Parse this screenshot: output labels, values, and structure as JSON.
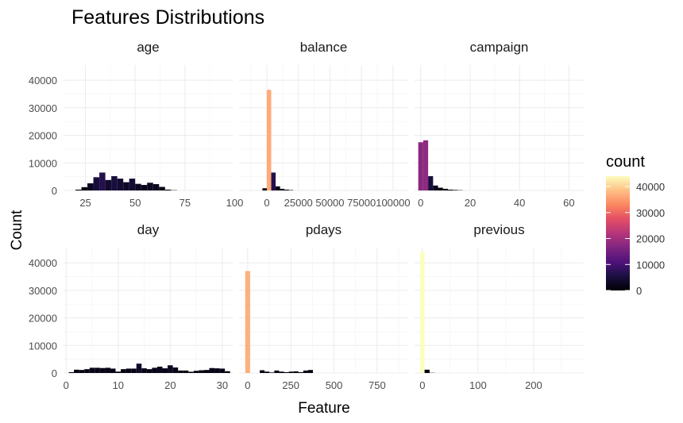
{
  "chart_data": {
    "type": "bar",
    "title": "Features Distributions",
    "xlabel": "Feature",
    "ylabel": "Count",
    "legend": {
      "title": "count",
      "ticks": [
        0,
        10000,
        20000,
        30000,
        40000
      ],
      "tick_labels": [
        "0",
        "10000",
        "20000",
        "30000",
        "40000"
      ],
      "placement": "right",
      "range": [
        0,
        44000
      ],
      "palette": "magma"
    },
    "y_ticks": [
      0,
      10000,
      20000,
      30000,
      40000
    ],
    "y_tick_labels": [
      "0",
      "10000",
      "20000",
      "30000",
      "40000"
    ],
    "ylim": [
      0,
      45500
    ],
    "grid": true,
    "panels": [
      {
        "name": "age",
        "xlim": [
          14,
          99
        ],
        "x_ticks": [
          25,
          50,
          75,
          100
        ],
        "x_tick_labels": [
          "25",
          "50",
          "75",
          "100"
        ],
        "bins": [
          {
            "x0": 20,
            "x1": 23,
            "count": 300
          },
          {
            "x0": 23,
            "x1": 26,
            "count": 1200
          },
          {
            "x0": 26,
            "x1": 29,
            "count": 2600
          },
          {
            "x0": 29,
            "x1": 32,
            "count": 4800
          },
          {
            "x0": 32,
            "x1": 35,
            "count": 6500
          },
          {
            "x0": 35,
            "x1": 38,
            "count": 3800
          },
          {
            "x0": 38,
            "x1": 41,
            "count": 5200
          },
          {
            "x0": 41,
            "x1": 44,
            "count": 4300
          },
          {
            "x0": 44,
            "x1": 47,
            "count": 3000
          },
          {
            "x0": 47,
            "x1": 50,
            "count": 4300
          },
          {
            "x0": 50,
            "x1": 53,
            "count": 2400
          },
          {
            "x0": 53,
            "x1": 56,
            "count": 2000
          },
          {
            "x0": 56,
            "x1": 59,
            "count": 2800
          },
          {
            "x0": 59,
            "x1": 62,
            "count": 2300
          },
          {
            "x0": 62,
            "x1": 65,
            "count": 1300
          },
          {
            "x0": 65,
            "x1": 68,
            "count": 300
          },
          {
            "x0": 68,
            "x1": 71,
            "count": 100
          }
        ]
      },
      {
        "name": "balance",
        "xlim": [
          -22000,
          112000
        ],
        "x_ticks": [
          0,
          25000,
          50000,
          75000,
          100000
        ],
        "x_tick_labels": [
          "0",
          "25000",
          "50000",
          "75000",
          "100000"
        ],
        "bins": [
          {
            "x0": -3500,
            "x1": 0,
            "count": 800
          },
          {
            "x0": 0,
            "x1": 3500,
            "count": 36500
          },
          {
            "x0": 3500,
            "x1": 7000,
            "count": 6500
          },
          {
            "x0": 7000,
            "x1": 10500,
            "count": 1500
          },
          {
            "x0": 10500,
            "x1": 14000,
            "count": 600
          },
          {
            "x0": 14000,
            "x1": 17500,
            "count": 300
          },
          {
            "x0": 17500,
            "x1": 21000,
            "count": 150
          }
        ]
      },
      {
        "name": "campaign",
        "xlim": [
          -2.5,
          66
        ],
        "x_ticks": [
          0,
          20,
          40,
          60
        ],
        "x_tick_labels": [
          "0",
          "20",
          "40",
          "60"
        ],
        "bins": [
          {
            "x0": -1,
            "x1": 1,
            "count": 17500
          },
          {
            "x0": 1,
            "x1": 3,
            "count": 18200
          },
          {
            "x0": 3,
            "x1": 5,
            "count": 5200
          },
          {
            "x0": 5,
            "x1": 7,
            "count": 1800
          },
          {
            "x0": 7,
            "x1": 9,
            "count": 1000
          },
          {
            "x0": 9,
            "x1": 11,
            "count": 600
          },
          {
            "x0": 11,
            "x1": 13,
            "count": 300
          },
          {
            "x0": 13,
            "x1": 15,
            "count": 200
          },
          {
            "x0": 15,
            "x1": 17,
            "count": 100
          }
        ]
      },
      {
        "name": "day",
        "xlim": [
          -0.5,
          32
        ],
        "x_ticks": [
          0,
          10,
          20,
          30
        ],
        "x_tick_labels": [
          "0",
          "10",
          "20",
          "30"
        ],
        "bins": [
          {
            "x0": 0.5,
            "x1": 1.5,
            "count": 300
          },
          {
            "x0": 1.5,
            "x1": 2.5,
            "count": 1200
          },
          {
            "x0": 2.5,
            "x1": 3.5,
            "count": 1100
          },
          {
            "x0": 3.5,
            "x1": 4.5,
            "count": 1400
          },
          {
            "x0": 4.5,
            "x1": 5.5,
            "count": 1900
          },
          {
            "x0": 5.5,
            "x1": 6.5,
            "count": 1900
          },
          {
            "x0": 6.5,
            "x1": 7.5,
            "count": 1800
          },
          {
            "x0": 7.5,
            "x1": 8.5,
            "count": 1900
          },
          {
            "x0": 8.5,
            "x1": 9.5,
            "count": 1600
          },
          {
            "x0": 9.5,
            "x1": 10.5,
            "count": 500
          },
          {
            "x0": 10.5,
            "x1": 11.5,
            "count": 1400
          },
          {
            "x0": 11.5,
            "x1": 12.5,
            "count": 1600
          },
          {
            "x0": 12.5,
            "x1": 13.5,
            "count": 1600
          },
          {
            "x0": 13.5,
            "x1": 14.5,
            "count": 3400
          },
          {
            "x0": 14.5,
            "x1": 15.5,
            "count": 1700
          },
          {
            "x0": 15.5,
            "x1": 16.5,
            "count": 1400
          },
          {
            "x0": 16.5,
            "x1": 17.5,
            "count": 1900
          },
          {
            "x0": 17.5,
            "x1": 18.5,
            "count": 2300
          },
          {
            "x0": 18.5,
            "x1": 19.5,
            "count": 1700
          },
          {
            "x0": 19.5,
            "x1": 20.5,
            "count": 2800
          },
          {
            "x0": 20.5,
            "x1": 21.5,
            "count": 2000
          },
          {
            "x0": 21.5,
            "x1": 22.5,
            "count": 900
          },
          {
            "x0": 22.5,
            "x1": 23.5,
            "count": 900
          },
          {
            "x0": 23.5,
            "x1": 24.5,
            "count": 450
          },
          {
            "x0": 24.5,
            "x1": 25.5,
            "count": 800
          },
          {
            "x0": 25.5,
            "x1": 26.5,
            "count": 1000
          },
          {
            "x0": 26.5,
            "x1": 27.5,
            "count": 1100
          },
          {
            "x0": 27.5,
            "x1": 28.5,
            "count": 1800
          },
          {
            "x0": 28.5,
            "x1": 29.5,
            "count": 1700
          },
          {
            "x0": 29.5,
            "x1": 30.5,
            "count": 1600
          },
          {
            "x0": 30.5,
            "x1": 31.5,
            "count": 650
          }
        ]
      },
      {
        "name": "pdays",
        "xlim": [
          -50,
          930
        ],
        "x_ticks": [
          0,
          250,
          500,
          750
        ],
        "x_tick_labels": [
          "0",
          "250",
          "500",
          "750"
        ],
        "bins": [
          {
            "x0": -14,
            "x1": 14,
            "count": 37000
          },
          {
            "x0": 70,
            "x1": 98,
            "count": 1000
          },
          {
            "x0": 98,
            "x1": 126,
            "count": 500
          },
          {
            "x0": 126,
            "x1": 154,
            "count": 200
          },
          {
            "x0": 154,
            "x1": 182,
            "count": 900
          },
          {
            "x0": 182,
            "x1": 210,
            "count": 500
          },
          {
            "x0": 210,
            "x1": 238,
            "count": 300
          },
          {
            "x0": 238,
            "x1": 266,
            "count": 500
          },
          {
            "x0": 266,
            "x1": 294,
            "count": 600
          },
          {
            "x0": 294,
            "x1": 322,
            "count": 300
          },
          {
            "x0": 322,
            "x1": 350,
            "count": 900
          },
          {
            "x0": 350,
            "x1": 378,
            "count": 1100
          }
        ]
      },
      {
        "name": "previous",
        "xlim": [
          -14,
          290
        ],
        "x_ticks": [
          0,
          100,
          200
        ],
        "x_tick_labels": [
          "0",
          "100",
          "200"
        ],
        "bins": [
          {
            "x0": -4,
            "x1": 4,
            "count": 44000
          },
          {
            "x0": 4,
            "x1": 13,
            "count": 1200
          },
          {
            "x0": 13,
            "x1": 22,
            "count": 80
          }
        ]
      }
    ]
  }
}
